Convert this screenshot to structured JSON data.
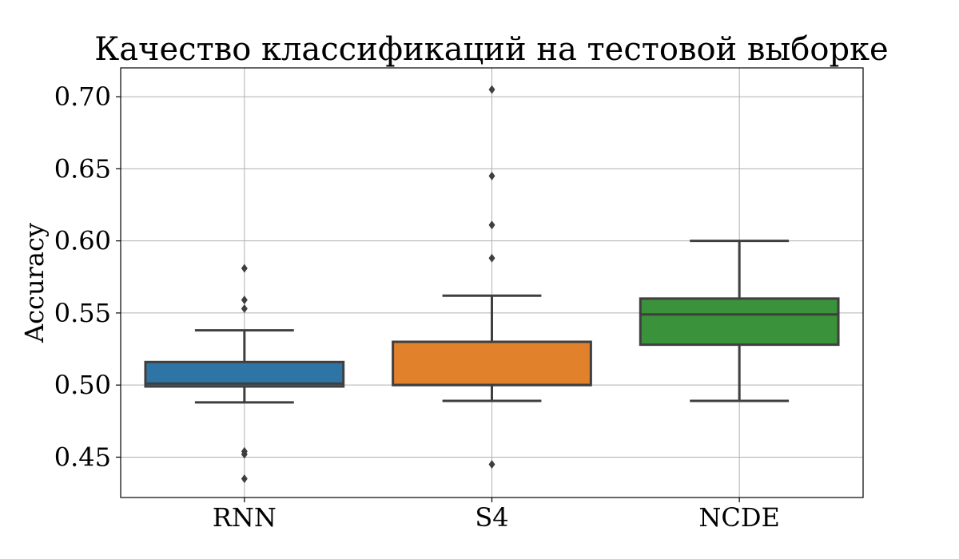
{
  "chart_data": {
    "type": "box",
    "title": "Качество классификаций на тестовой выборке",
    "xlabel": "",
    "ylabel": "Accuracy",
    "ylim": [
      0.422,
      0.72
    ],
    "yticks": [
      0.45,
      0.5,
      0.55,
      0.6,
      0.65,
      0.7
    ],
    "ytick_labels": [
      "0.45",
      "0.50",
      "0.55",
      "0.60",
      "0.65",
      "0.70"
    ],
    "grid": true,
    "categories": [
      "RNN",
      "S4",
      "NCDE"
    ],
    "boxes": [
      {
        "category": "RNN",
        "color": "#2e75a6",
        "whisker_low": 0.488,
        "q1": 0.499,
        "median": 0.501,
        "q3": 0.516,
        "whisker_high": 0.538,
        "outliers": [
          0.581,
          0.559,
          0.553,
          0.454,
          0.452,
          0.435
        ]
      },
      {
        "category": "S4",
        "color": "#e1812c",
        "whisker_low": 0.489,
        "q1": 0.5,
        "median": 0.5,
        "q3": 0.53,
        "whisker_high": 0.562,
        "outliers": [
          0.705,
          0.645,
          0.611,
          0.588,
          0.445
        ]
      },
      {
        "category": "NCDE",
        "color": "#3a923a",
        "whisker_low": 0.489,
        "q1": 0.528,
        "median": 0.549,
        "q3": 0.56,
        "whisker_high": 0.6,
        "outliers": []
      }
    ]
  }
}
